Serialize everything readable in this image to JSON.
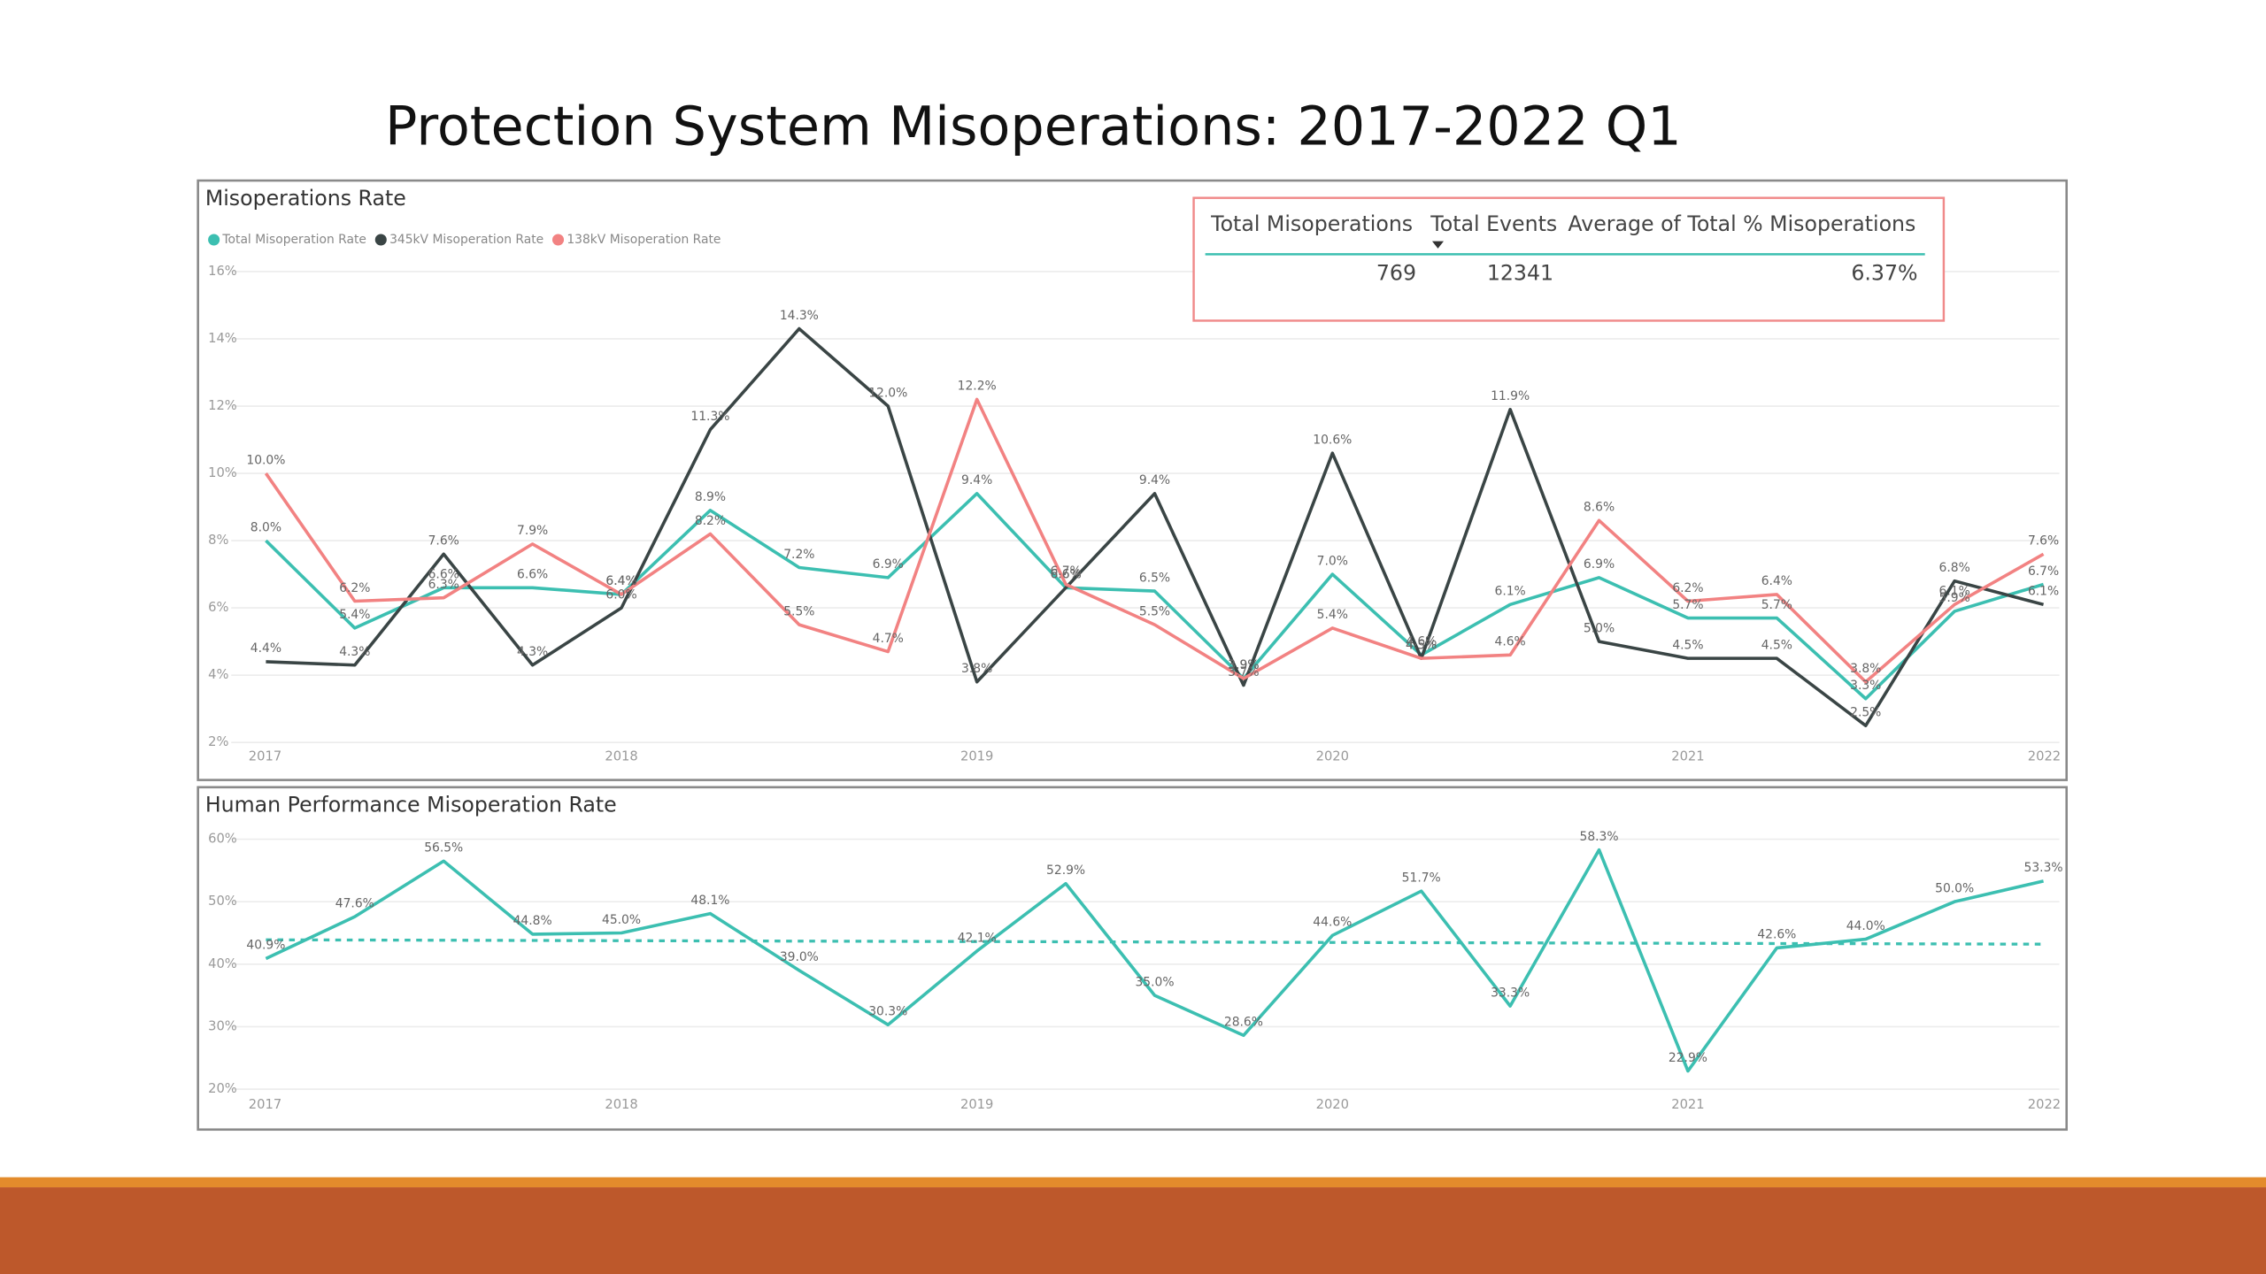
{
  "title": "Protection System Misoperations:  2017-2022 Q1",
  "chart_data": [
    {
      "type": "line",
      "title": "Misoperations Rate",
      "categories": [
        "2017",
        null,
        null,
        null,
        "2018",
        null,
        null,
        null,
        "2019",
        null,
        null,
        null,
        "2020",
        null,
        null,
        null,
        "2021",
        null,
        null,
        null,
        "2022"
      ],
      "ylim": [
        2,
        16
      ],
      "yticks": [
        {
          "value": 2,
          "label": "2%"
        },
        {
          "value": 4,
          "label": "4%"
        },
        {
          "value": 6,
          "label": "6%"
        },
        {
          "value": 8,
          "label": "8%"
        },
        {
          "value": 10,
          "label": "10%"
        },
        {
          "value": 12,
          "label": "12%"
        },
        {
          "value": 14,
          "label": "14%"
        },
        {
          "value": 16,
          "label": "16%"
        }
      ],
      "grid": true,
      "legend": "top-left",
      "series": [
        {
          "name": "Total Misoperation Rate",
          "color": "#3cbfb1",
          "values": [
            8.0,
            5.4,
            6.6,
            6.6,
            6.4,
            8.9,
            7.2,
            6.9,
            9.4,
            6.6,
            6.5,
            3.9,
            7.0,
            4.6,
            6.1,
            6.9,
            5.7,
            5.7,
            3.3,
            5.9,
            6.7
          ],
          "value_labels": [
            "8.0%",
            "5.4%",
            "6.6%",
            "6.6%",
            "6.4%",
            "8.9%",
            "7.2%",
            "6.9%",
            "9.4%",
            "6.6%",
            "6.5%",
            "3.9%",
            "7.0%",
            "4.6%",
            "6.1%",
            "6.9%",
            "5.7%",
            "5.7%",
            "3.3%",
            "5.9%",
            "6.7%"
          ]
        },
        {
          "name": "345kV Misoperation Rate",
          "color": "#3a4545",
          "values": [
            4.4,
            4.3,
            7.6,
            4.3,
            6.0,
            11.3,
            14.3,
            12.0,
            3.8,
            6.6,
            9.4,
            3.7,
            10.6,
            4.5,
            11.9,
            5.0,
            4.5,
            4.5,
            2.5,
            6.8,
            6.1
          ],
          "value_labels": [
            "4.4%",
            "4.3%",
            "7.6%",
            "4.3%",
            "6.0%",
            "11.3%",
            "14.3%",
            "12.0%",
            "3.8%",
            "6.6%",
            "9.4%",
            "3.7%",
            "10.6%",
            "4.5%",
            "11.9%",
            "5.0%",
            "4.5%",
            "4.5%",
            "2.5%",
            "6.8%",
            "6.1%"
          ]
        },
        {
          "name": "138kV Misoperation Rate",
          "color": "#f28282",
          "values": [
            10.0,
            6.2,
            6.3,
            7.9,
            6.4,
            8.2,
            5.5,
            4.7,
            12.2,
            6.7,
            5.5,
            3.9,
            5.4,
            4.5,
            4.6,
            8.6,
            6.2,
            6.4,
            3.8,
            6.1,
            7.6
          ],
          "value_labels": [
            "10.0%",
            "6.2%",
            "6.3%",
            "7.9%",
            "6.4%",
            "8.2%",
            "5.5%",
            "4.7%",
            "12.2%",
            "6.7%",
            "5.5%",
            "3.9%",
            "5.4%",
            "4.5%",
            "4.6%",
            "8.6%",
            "6.2%",
            "6.4%",
            "3.8%",
            "6.1%",
            "7.6%"
          ]
        }
      ]
    },
    {
      "type": "line",
      "title": "Human Performance Misoperation Rate",
      "categories": [
        "2017",
        null,
        null,
        null,
        "2018",
        null,
        null,
        null,
        "2019",
        null,
        null,
        null,
        "2020",
        null,
        null,
        null,
        "2021",
        null,
        null,
        null,
        "2022"
      ],
      "ylim": [
        20,
        60
      ],
      "yticks": [
        {
          "value": 20,
          "label": "20%"
        },
        {
          "value": 30,
          "label": "30%"
        },
        {
          "value": 40,
          "label": "40%"
        },
        {
          "value": 50,
          "label": "50%"
        },
        {
          "value": 60,
          "label": "60%"
        }
      ],
      "grid": true,
      "color": "#3cbfb1",
      "values": [
        40.9,
        47.6,
        56.5,
        44.8,
        45.0,
        48.1,
        39.0,
        30.3,
        42.1,
        52.9,
        35.0,
        28.6,
        44.6,
        51.7,
        33.3,
        58.3,
        22.9,
        42.6,
        44.0,
        50.0,
        53.3
      ],
      "value_labels": [
        "40.9%",
        "47.6%",
        "56.5%",
        "44.8%",
        "45.0%",
        "48.1%",
        "39.0%",
        "30.3%",
        "42.1%",
        "52.9%",
        "35.0%",
        "28.6%",
        "44.6%",
        "51.7%",
        "33.3%",
        "58.3%",
        "22.9%",
        "42.6%",
        "44.0%",
        "50.0%",
        "53.3%"
      ],
      "average_line": {
        "values": [
          43.9,
          43.2
        ]
      }
    }
  ],
  "table": {
    "header": [
      "Total Misoperations",
      "Total Events",
      "Average of Total % Misoperations"
    ],
    "rows": [
      [
        769,
        12341,
        "6.37%"
      ]
    ]
  }
}
